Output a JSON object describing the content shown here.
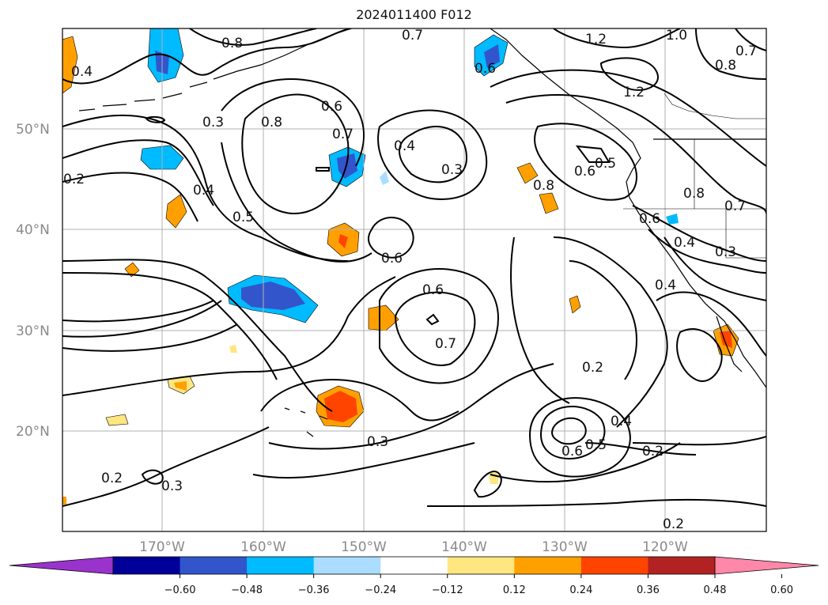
{
  "title": "2024011400 F012",
  "map": {
    "latitudes": [
      "50°N",
      "40°N",
      "30°N",
      "20°N"
    ],
    "longitudes": [
      "170°W",
      "160°W",
      "150°W",
      "140°W",
      "130°W",
      "120°W"
    ],
    "contour_labels": [
      "0.8",
      "0.7",
      "1.2",
      "1.0",
      "0.7",
      "0.8",
      "0.4",
      "0.6",
      "1.2",
      "0.6",
      "0.8",
      "0.3",
      "0.7",
      "0.4",
      "0.3",
      "0.5",
      "0.6",
      "0.2",
      "0.4",
      "0.8",
      "0.8",
      "0.7",
      "0.5",
      "0.6",
      "0.6",
      "0.4",
      "0.3",
      "0.6",
      "0.7",
      "0.4",
      "0.2",
      "0.4",
      "0.5",
      "0.6",
      "0.3",
      "0.2",
      "0.2",
      "0.3",
      "0.2"
    ]
  },
  "colorbar": {
    "colors": [
      "#9933cc",
      "#000099",
      "#3355cc",
      "#00bbff",
      "#aaddff",
      "#ffffff",
      "#ffe680",
      "#ffa000",
      "#ff4400",
      "#b22222",
      "#ff88aa"
    ],
    "under_color": "#9933cc",
    "over_color": "#ff88aa",
    "ticks": [
      "−0.60",
      "−0.48",
      "−0.36",
      "−0.24",
      "−0.12",
      "0.12",
      "0.24",
      "0.36",
      "0.48",
      "0.60"
    ]
  }
}
